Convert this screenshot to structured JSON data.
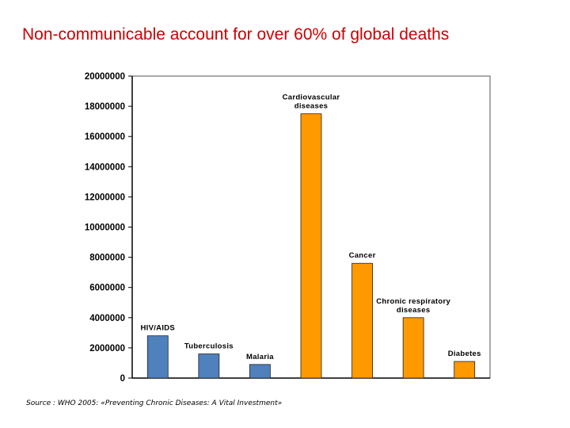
{
  "slide": {
    "title": "Non-communicable account for over 60% of global deaths",
    "source": "Source : WHO 2005: «Preventing Chronic Diseases: A Vital Investment»"
  },
  "colors": {
    "title": "#cc0000",
    "communicable": "#4f81bd",
    "non_communicable": "#ff9900",
    "bar_outline": "#222222",
    "axis": "#000000"
  },
  "chart_data": {
    "type": "bar",
    "title": "",
    "xlabel": "",
    "ylabel": "",
    "ylim": [
      0,
      20000000
    ],
    "yticks": [
      "0",
      "2000000",
      "4000000",
      "6000000",
      "8000000",
      "10000000",
      "12000000",
      "14000000",
      "16000000",
      "18000000",
      "20000000"
    ],
    "grid": false,
    "bars": [
      {
        "label_lines": [
          "HIV/AIDS"
        ],
        "value": 2800000,
        "group": "communicable"
      },
      {
        "label_lines": [
          "Tuberculosis"
        ],
        "value": 1600000,
        "group": "communicable"
      },
      {
        "label_lines": [
          "Malaria"
        ],
        "value": 900000,
        "group": "communicable"
      },
      {
        "label_lines": [
          "Cardiovascular",
          "diseases"
        ],
        "value": 17500000,
        "group": "non_communicable"
      },
      {
        "label_lines": [
          "Cancer"
        ],
        "value": 7600000,
        "group": "non_communicable"
      },
      {
        "label_lines": [
          "Chronic respiratory",
          "diseases"
        ],
        "value": 4000000,
        "group": "non_communicable"
      },
      {
        "label_lines": [
          "Diabetes"
        ],
        "value": 1100000,
        "group": "non_communicable"
      }
    ]
  }
}
